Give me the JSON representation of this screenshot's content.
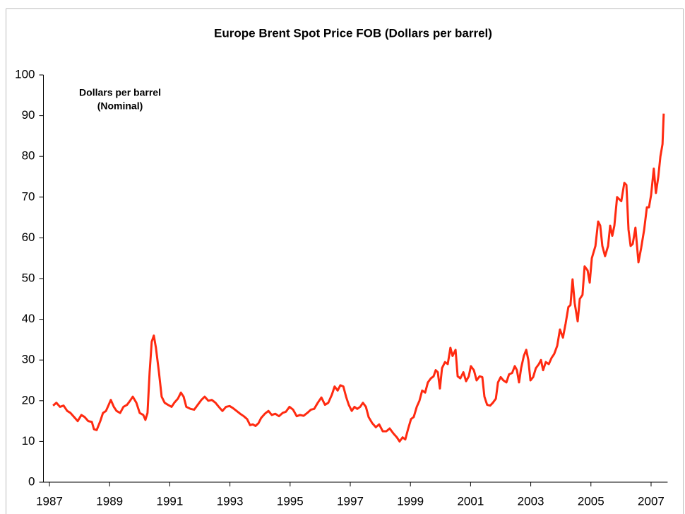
{
  "chart_data": {
    "type": "line",
    "title": "Europe Brent Spot Price FOB (Dollars per barrel)",
    "annotation": [
      "Dollars per barrel",
      "(Nominal)"
    ],
    "xlim": [
      1986.8,
      2007.55
    ],
    "xticks": [
      1987,
      1989,
      1991,
      1993,
      1995,
      1997,
      1999,
      2001,
      2003,
      2005,
      2007
    ],
    "ylim": [
      0,
      100
    ],
    "yticks": [
      0,
      10,
      20,
      30,
      40,
      50,
      60,
      70,
      80,
      90,
      100
    ],
    "grid": false,
    "series": [
      {
        "name": "Europe Brent Spot Price FOB",
        "color": "#ff2a10",
        "x": [
          1987.12,
          1987.23,
          1987.35,
          1987.47,
          1987.59,
          1987.7,
          1987.82,
          1987.94,
          1988.06,
          1988.17,
          1988.29,
          1988.41,
          1988.48,
          1988.57,
          1988.69,
          1988.78,
          1988.88,
          1988.97,
          1989.04,
          1989.14,
          1989.23,
          1989.35,
          1989.46,
          1989.58,
          1989.68,
          1989.77,
          1989.89,
          1990.0,
          1990.12,
          1990.19,
          1990.26,
          1990.33,
          1990.4,
          1990.47,
          1990.54,
          1990.64,
          1990.73,
          1990.83,
          1990.94,
          1991.06,
          1991.15,
          1991.27,
          1991.37,
          1991.46,
          1991.55,
          1991.69,
          1991.81,
          1991.93,
          1992.05,
          1992.16,
          1992.28,
          1992.4,
          1992.52,
          1992.63,
          1992.75,
          1992.87,
          1992.99,
          1993.1,
          1993.22,
          1993.34,
          1993.46,
          1993.57,
          1993.67,
          1993.76,
          1993.85,
          1993.95,
          1994.04,
          1994.16,
          1994.28,
          1994.39,
          1994.51,
          1994.63,
          1994.75,
          1994.86,
          1994.98,
          1995.1,
          1995.22,
          1995.33,
          1995.45,
          1995.57,
          1995.69,
          1995.8,
          1995.92,
          1996.04,
          1996.16,
          1996.27,
          1996.39,
          1996.48,
          1996.58,
          1996.67,
          1996.77,
          1996.86,
          1996.95,
          1997.05,
          1997.14,
          1997.23,
          1997.33,
          1997.42,
          1997.52,
          1997.61,
          1997.73,
          1997.85,
          1997.96,
          1998.08,
          1998.2,
          1998.31,
          1998.43,
          1998.55,
          1998.64,
          1998.74,
          1998.83,
          1998.92,
          1999.02,
          1999.11,
          1999.21,
          1999.3,
          1999.39,
          1999.49,
          1999.58,
          1999.68,
          1999.77,
          1999.84,
          1999.91,
          1999.98,
          2000.05,
          2000.15,
          2000.24,
          2000.33,
          2000.4,
          2000.5,
          2000.57,
          2000.66,
          2000.76,
          2000.85,
          2000.94,
          2001.01,
          2001.11,
          2001.2,
          2001.3,
          2001.39,
          2001.46,
          2001.55,
          2001.65,
          2001.74,
          2001.84,
          2001.91,
          2002.0,
          2002.09,
          2002.19,
          2002.28,
          2002.38,
          2002.47,
          2002.54,
          2002.61,
          2002.68,
          2002.77,
          2002.85,
          2002.92,
          2002.99,
          2003.08,
          2003.17,
          2003.27,
          2003.34,
          2003.41,
          2003.5,
          2003.6,
          2003.69,
          2003.78,
          2003.88,
          2003.97,
          2004.07,
          2004.16,
          2004.25,
          2004.32,
          2004.39,
          2004.46,
          2004.56,
          2004.63,
          2004.72,
          2004.79,
          2004.89,
          2004.96,
          2005.03,
          2005.15,
          2005.24,
          2005.31,
          2005.38,
          2005.47,
          2005.57,
          2005.64,
          2005.71,
          2005.78,
          2005.87,
          2005.94,
          2006.01,
          2006.11,
          2006.18,
          2006.25,
          2006.32,
          2006.39,
          2006.48,
          2006.58,
          2006.67,
          2006.77,
          2006.86,
          2006.93,
          2007.0,
          2007.09,
          2007.16,
          2007.24,
          2007.31,
          2007.38,
          2007.42
        ],
        "values": [
          18.8,
          19.5,
          18.5,
          18.8,
          17.5,
          17,
          16,
          15,
          16.5,
          16,
          15,
          14.8,
          13,
          12.8,
          15,
          17,
          17.5,
          19,
          20.2,
          18.5,
          17.5,
          17,
          18.5,
          19,
          20,
          21,
          19.5,
          17,
          16.5,
          15.3,
          17,
          27,
          34.5,
          36,
          33,
          27,
          21,
          19.5,
          19,
          18.5,
          19.5,
          20.5,
          22,
          21,
          18.5,
          18,
          17.8,
          19,
          20.2,
          21,
          20,
          20.2,
          19.5,
          18.5,
          17.5,
          18.5,
          18.7,
          18.2,
          17.5,
          16.8,
          16.2,
          15.5,
          14,
          14.2,
          13.8,
          14.5,
          15.8,
          16.8,
          17.5,
          16.5,
          16.8,
          16.2,
          17,
          17.3,
          18.5,
          17.8,
          16.2,
          16.5,
          16.3,
          17,
          17.8,
          18,
          19.5,
          20.8,
          19,
          19.5,
          21.5,
          23.5,
          22.5,
          23.8,
          23.5,
          21,
          19,
          17.5,
          18.5,
          18,
          18.5,
          19.5,
          18.5,
          16,
          14.5,
          13.5,
          14.2,
          12.5,
          12.5,
          13.2,
          12,
          11,
          10,
          11,
          10.5,
          13,
          15.5,
          16,
          18.5,
          20,
          22.5,
          22,
          24.5,
          25.5,
          26,
          27.5,
          27,
          23,
          28,
          29.5,
          29,
          33,
          31,
          32.5,
          26,
          25.5,
          27,
          24.8,
          26,
          28.5,
          27.5,
          25,
          26,
          25.8,
          21,
          19,
          18.8,
          19.5,
          20.5,
          24.5,
          25.8,
          25,
          24.5,
          26.5,
          26.8,
          28.5,
          27.5,
          24.5,
          28,
          31,
          32.5,
          30,
          25,
          25.8,
          28,
          29,
          30,
          27.5,
          29.5,
          29,
          30.5,
          31.5,
          33.5,
          37.5,
          35.5,
          39,
          43,
          43.5,
          49.8,
          44,
          39.5,
          45,
          46,
          53,
          52,
          49,
          55,
          58,
          64,
          63,
          58,
          55.5,
          58,
          63,
          60.5,
          63,
          70,
          69.5,
          69,
          73.5,
          73,
          62,
          58,
          58.5,
          62.5,
          54,
          57.5,
          62,
          67.5,
          67.5,
          70.5,
          77,
          71,
          75,
          80,
          83,
          90.5
        ]
      }
    ]
  }
}
